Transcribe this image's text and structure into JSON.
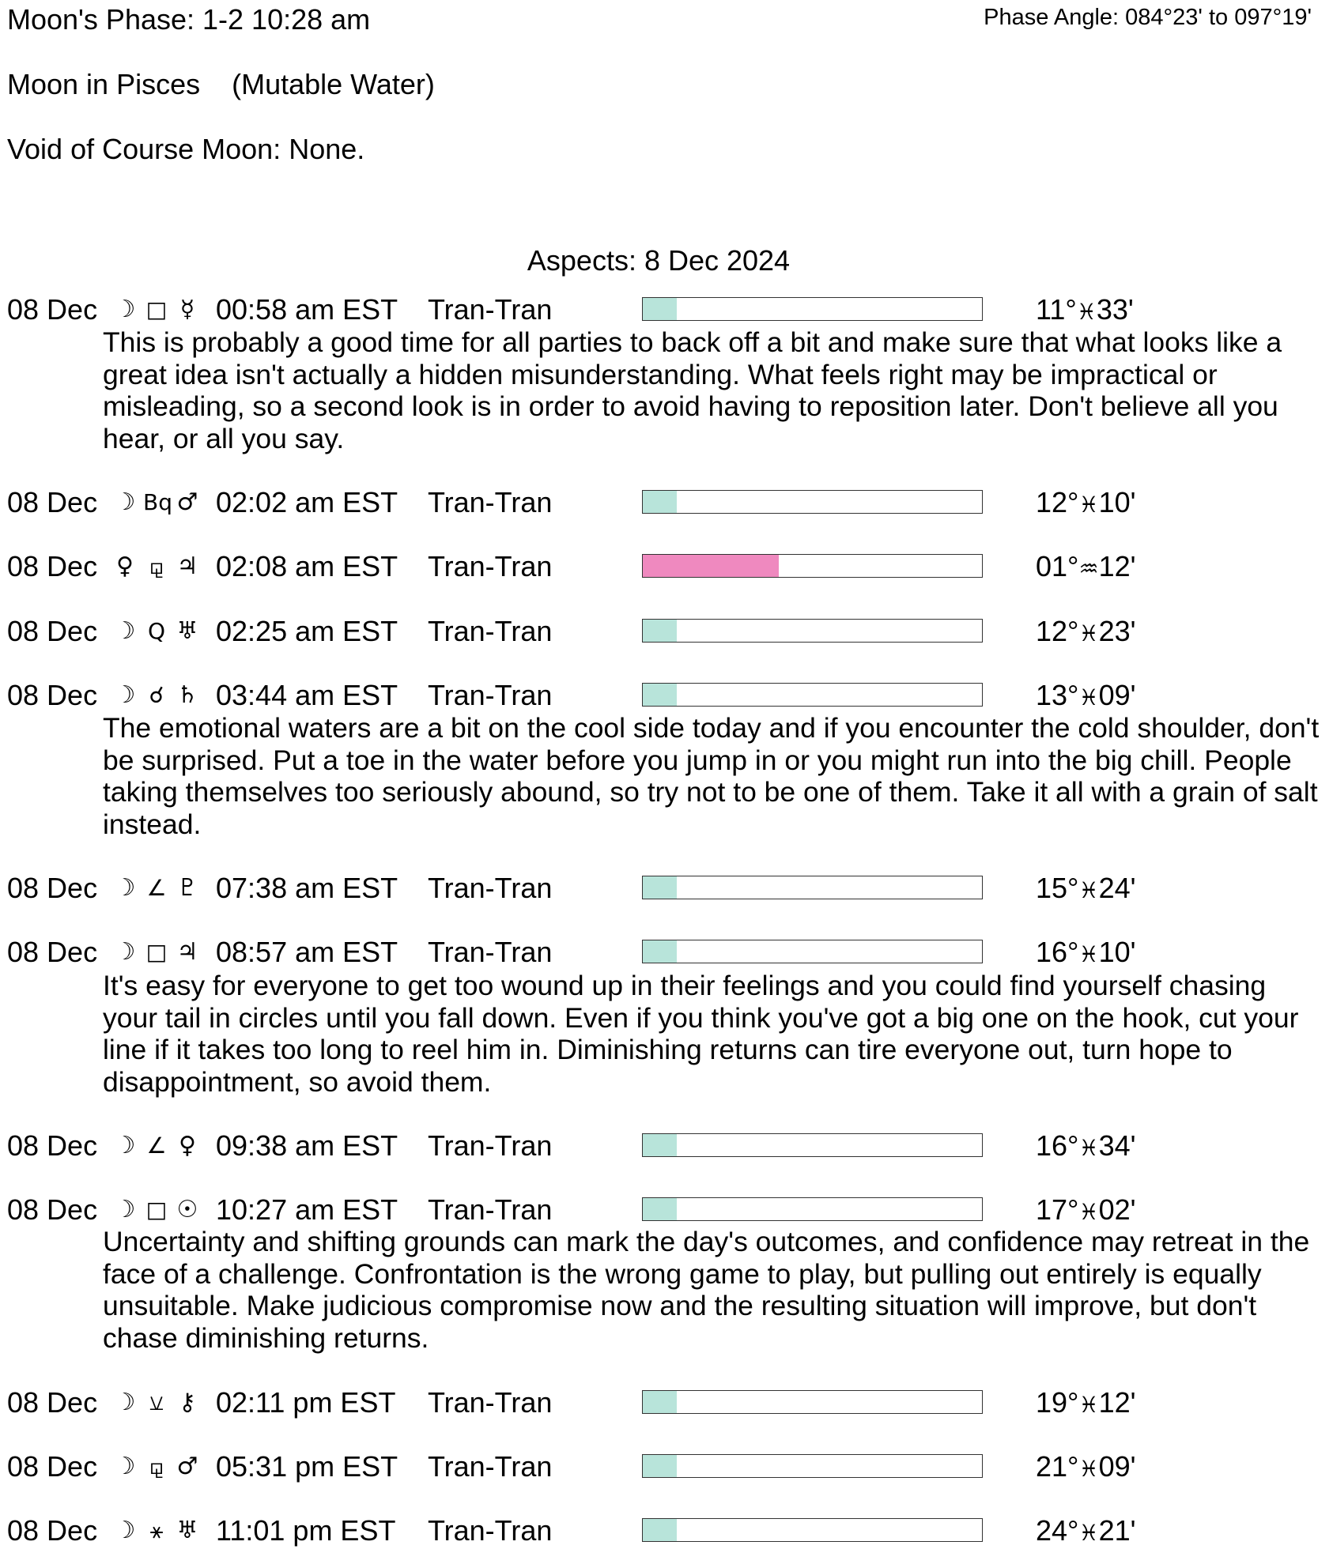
{
  "header": {
    "moon_phase": "Moon's Phase:  1-2 10:28 am",
    "phase_angle": "Phase Angle:  084°23' to 097°19'",
    "moon_sign": "Moon in Pisces    (Mutable Water)",
    "void_of_course": "Void of Course Moon: None."
  },
  "aspects_title": "Aspects: 8 Dec 2024",
  "colors": {
    "harmonious_fill": "#b8e4da",
    "tense_fill": "#ef89bf",
    "bar_border": "#333333"
  },
  "aspects": [
    {
      "date": "08 Dec",
      "planet1": "☽",
      "aspect": "□",
      "planet2": "☿",
      "time": "00:58 am EST",
      "type": "Tran-Tran",
      "strength": 0.1,
      "fill": "harmonious_fill",
      "deg": "11°",
      "sign": "♓",
      "min": "33'",
      "description": "This is probably a good time for all parties to back off a bit and make sure that what looks like a great idea isn't actually a hidden misunderstanding. What feels right may be impractical or misleading, so a second look is in order to avoid having to reposition later. Don't believe all you hear, or all you say."
    },
    {
      "date": "08 Dec",
      "planet1": "☽",
      "aspect": "Bq",
      "planet2": "♂",
      "time": "02:02 am EST",
      "type": "Tran-Tran",
      "strength": 0.1,
      "fill": "harmonious_fill",
      "deg": "12°",
      "sign": "♓",
      "min": "10'"
    },
    {
      "date": "08 Dec",
      "planet1": "♀",
      "aspect": "⚼",
      "planet2": "♃",
      "time": "02:08 am EST",
      "type": "Tran-Tran",
      "strength": 0.4,
      "fill": "tense_fill",
      "deg": "01°",
      "sign": "♒",
      "min": "12'"
    },
    {
      "date": "08 Dec",
      "planet1": "☽",
      "aspect": "Q",
      "planet2": "♅",
      "time": "02:25 am EST",
      "type": "Tran-Tran",
      "strength": 0.1,
      "fill": "harmonious_fill",
      "deg": "12°",
      "sign": "♓",
      "min": "23'"
    },
    {
      "date": "08 Dec",
      "planet1": "☽",
      "aspect": "☌",
      "planet2": "♄",
      "time": "03:44 am EST",
      "type": "Tran-Tran",
      "strength": 0.1,
      "fill": "harmonious_fill",
      "deg": "13°",
      "sign": "♓",
      "min": "09'",
      "description": "The emotional waters are a bit on the cool side today and if you encounter the cold shoulder, don't be surprised. Put a toe in the water before you jump in or you might run into the big chill. People taking themselves too seriously abound, so try not to be one of them. Take it all with a grain of salt instead."
    },
    {
      "date": "08 Dec",
      "planet1": "☽",
      "aspect": "∠",
      "planet2": "♇",
      "time": "07:38 am EST",
      "type": "Tran-Tran",
      "strength": 0.1,
      "fill": "harmonious_fill",
      "deg": "15°",
      "sign": "♓",
      "min": "24'"
    },
    {
      "date": "08 Dec",
      "planet1": "☽",
      "aspect": "□",
      "planet2": "♃",
      "time": "08:57 am EST",
      "type": "Tran-Tran",
      "strength": 0.1,
      "fill": "harmonious_fill",
      "deg": "16°",
      "sign": "♓",
      "min": "10'",
      "description": "It's easy for everyone to get too wound up in their feelings and you could find yourself chasing your tail in circles until you fall down. Even if you think you've got a big one on the hook, cut your line if it takes too long to reel him in. Diminishing returns can tire everyone out, turn hope to disappointment, so avoid them."
    },
    {
      "date": "08 Dec",
      "planet1": "☽",
      "aspect": "∠",
      "planet2": "♀",
      "time": "09:38 am EST",
      "type": "Tran-Tran",
      "strength": 0.1,
      "fill": "harmonious_fill",
      "deg": "16°",
      "sign": "♓",
      "min": "34'"
    },
    {
      "date": "08 Dec",
      "planet1": "☽",
      "aspect": "□",
      "planet2": "☉",
      "time": "10:27 am EST",
      "type": "Tran-Tran",
      "strength": 0.1,
      "fill": "harmonious_fill",
      "deg": "17°",
      "sign": "♓",
      "min": "02'",
      "description": "Uncertainty and shifting grounds can mark the day's outcomes, and confidence may retreat in the face of a challenge. Confrontation is the wrong game to play, but pulling out entirely is equally unsuitable. Make judicious compromise now and the resulting situation will improve, but don't chase diminishing returns."
    },
    {
      "date": "08 Dec",
      "planet1": "☽",
      "aspect": "⚺",
      "planet2": "⚷",
      "time": "02:11 pm EST",
      "type": "Tran-Tran",
      "strength": 0.1,
      "fill": "harmonious_fill",
      "deg": "19°",
      "sign": "♓",
      "min": "12'"
    },
    {
      "date": "08 Dec",
      "planet1": "☽",
      "aspect": "⚼",
      "planet2": "♂",
      "time": "05:31 pm EST",
      "type": "Tran-Tran",
      "strength": 0.1,
      "fill": "harmonious_fill",
      "deg": "21°",
      "sign": "♓",
      "min": "09'"
    },
    {
      "date": "08 Dec",
      "planet1": "☽",
      "aspect": "⚹",
      "planet2": "♅",
      "time": "11:01 pm EST",
      "type": "Tran-Tran",
      "strength": 0.1,
      "fill": "harmonious_fill",
      "deg": "24°",
      "sign": "♓",
      "min": "21'"
    }
  ]
}
